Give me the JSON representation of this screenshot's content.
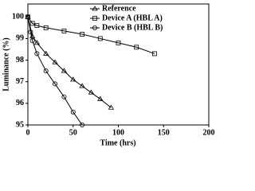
{
  "chart_data": {
    "type": "line",
    "x_label": "Time (hrs)",
    "y_label": "Luminance (%)",
    "xlim": [
      0,
      200
    ],
    "xticks": [
      0,
      50,
      100,
      150,
      200
    ],
    "ylim": [
      95,
      100.6
    ],
    "yticks": [
      95,
      96,
      97,
      98,
      99,
      100
    ],
    "legend": "top-right",
    "series": [
      {
        "name": "Reference",
        "color": "#000000",
        "marker": "triangle",
        "x": [
          0,
          5,
          10,
          20,
          30,
          40,
          50,
          60,
          70,
          80,
          92
        ],
        "values": [
          100,
          99.1,
          98.8,
          98.3,
          97.9,
          97.5,
          97.1,
          96.8,
          96.5,
          96.2,
          95.8
        ]
      },
      {
        "name": "Device A (HBL A)",
        "color": "#000000",
        "marker": "square",
        "x": [
          0,
          5,
          10,
          20,
          40,
          60,
          80,
          100,
          120,
          140
        ],
        "values": [
          100,
          99.7,
          99.6,
          99.5,
          99.35,
          99.2,
          99.0,
          98.8,
          98.6,
          98.3
        ]
      },
      {
        "name": "Device B (HBL B)",
        "color": "#000000",
        "marker": "circle",
        "x": [
          0,
          3,
          5,
          10,
          20,
          30,
          40,
          50,
          60
        ],
        "values": [
          100,
          99.3,
          98.9,
          98.3,
          97.5,
          96.9,
          96.3,
          95.6,
          95.0
        ]
      }
    ]
  }
}
